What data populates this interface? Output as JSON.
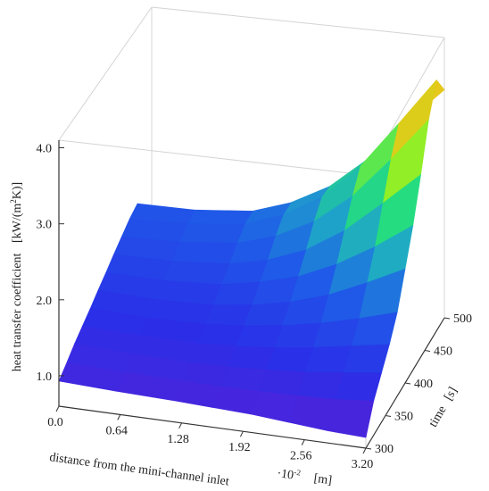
{
  "chart_data": {
    "type": "surface3d",
    "title": "",
    "zlabel": "heat transfer coefficient",
    "zunit_prefix": "[kW/(m",
    "zunit_exp": "2",
    "zunit_suffix": "K)]",
    "xlabel": "distance from the mini-channel inlet",
    "x_multiplier_base": "·10",
    "x_multiplier_exp": "-2",
    "x_unit": "[m]",
    "ylabel": "time",
    "y_unit": "[s]",
    "x_ticks": [
      "3.20",
      "2.56",
      "1.92",
      "1.28",
      "0.64",
      "0.0"
    ],
    "y_ticks": [
      "300",
      "350",
      "400",
      "450",
      "500"
    ],
    "z_ticks": [
      "1.0",
      "2.0",
      "3.0",
      "4.0"
    ],
    "xlim": [
      0.0,
      3.2
    ],
    "ylim": [
      300,
      500
    ],
    "zlim": [
      0.6,
      4.1
    ],
    "grid": false,
    "colormap": [
      "#5a1fd6",
      "#2a2fe8",
      "#1f5ce8",
      "#1fa8c8",
      "#25e07a",
      "#9cf01e",
      "#f2c21a",
      "#f07a1a"
    ],
    "surface_rows": [
      {
        "time": 300,
        "h": [
          0.74,
          0.76,
          0.8,
          0.84,
          0.86,
          0.88,
          0.9,
          0.93
        ]
      },
      {
        "time": 320,
        "h": [
          1.05,
          1.0,
          0.98,
          0.97,
          0.96,
          0.97,
          0.98,
          1.0
        ]
      },
      {
        "time": 340,
        "h": [
          1.25,
          1.18,
          1.12,
          1.08,
          1.05,
          1.04,
          1.05,
          1.08
        ]
      },
      {
        "time": 360,
        "h": [
          1.45,
          1.36,
          1.27,
          1.2,
          1.15,
          1.12,
          1.12,
          1.14
        ]
      },
      {
        "time": 380,
        "h": [
          1.7,
          1.55,
          1.42,
          1.32,
          1.25,
          1.2,
          1.18,
          1.2
        ]
      },
      {
        "time": 400,
        "h": [
          2.1,
          1.85,
          1.62,
          1.46,
          1.35,
          1.28,
          1.25,
          1.27
        ]
      },
      {
        "time": 420,
        "h": [
          2.5,
          2.15,
          1.85,
          1.62,
          1.48,
          1.38,
          1.33,
          1.33
        ]
      },
      {
        "time": 440,
        "h": [
          3.0,
          2.55,
          2.12,
          1.8,
          1.6,
          1.48,
          1.41,
          1.4
        ]
      },
      {
        "time": 460,
        "h": [
          3.55,
          2.95,
          2.4,
          2.0,
          1.74,
          1.58,
          1.49,
          1.46
        ]
      },
      {
        "time": 480,
        "h": [
          3.9,
          3.25,
          2.62,
          2.15,
          1.85,
          1.66,
          1.56,
          1.52
        ]
      },
      {
        "time": 500,
        "h": [
          3.6,
          3.1,
          2.55,
          2.12,
          1.84,
          1.66,
          1.57,
          1.55
        ]
      }
    ],
    "surface_x": [
      3.2,
      2.8,
      2.4,
      2.0,
      1.6,
      1.2,
      0.6,
      0.0
    ]
  }
}
